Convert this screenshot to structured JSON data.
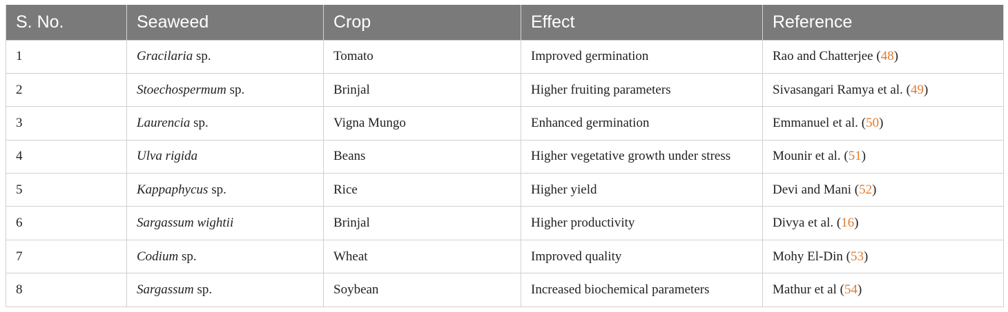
{
  "table": {
    "headers": [
      "S. No.",
      "Seaweed",
      "Crop",
      "Effect",
      "Reference"
    ],
    "rows": [
      {
        "sno": "1",
        "seaweed_italic": "Gracilaria",
        "seaweed_suffix": " sp.",
        "crop": "Tomato",
        "effect": "Improved germination",
        "ref_text": "Rao and Chatterjee (",
        "ref_num": "48",
        "ref_close": ")"
      },
      {
        "sno": "2",
        "seaweed_italic": "Stoechospermum",
        "seaweed_suffix": " sp.",
        "crop": "Brinjal",
        "effect": "Higher fruiting parameters",
        "ref_text": "Sivasangari Ramya et al. (",
        "ref_num": "49",
        "ref_close": ")"
      },
      {
        "sno": "3",
        "seaweed_italic": "Laurencia",
        "seaweed_suffix": " sp.",
        "crop": "Vigna Mungo",
        "effect": "Enhanced germination",
        "ref_text": "Emmanuel et al. (",
        "ref_num": "50",
        "ref_close": ")"
      },
      {
        "sno": "4",
        "seaweed_italic": "Ulva rigida",
        "seaweed_suffix": "",
        "crop": "Beans",
        "effect": "Higher vegetative growth under stress",
        "ref_text": "Mounir et al. (",
        "ref_num": "51",
        "ref_close": ")"
      },
      {
        "sno": "5",
        "seaweed_italic": "Kappaphycus",
        "seaweed_suffix": " sp.",
        "crop": "Rice",
        "effect": "Higher yield",
        "ref_text": "Devi and Mani (",
        "ref_num": "52",
        "ref_close": ")"
      },
      {
        "sno": "6",
        "seaweed_italic": "Sargassum wightii",
        "seaweed_suffix": "",
        "crop": "Brinjal",
        "effect": "Higher productivity",
        "ref_text": "Divya et al. (",
        "ref_num": "16",
        "ref_close": ")"
      },
      {
        "sno": "7",
        "seaweed_italic": "Codium",
        "seaweed_suffix": " sp.",
        "crop": "Wheat",
        "effect": "Improved quality",
        "ref_text": "Mohy El-Din (",
        "ref_num": "53",
        "ref_close": ")"
      },
      {
        "sno": "8",
        "seaweed_italic": "Sargassum",
        "seaweed_suffix": " sp.",
        "crop": "Soybean",
        "effect": "Increased biochemical parameters",
        "ref_text": "Mathur et al (",
        "ref_num": "54",
        "ref_close": ")"
      }
    ]
  },
  "colors": {
    "header_bg": "#7a7a7a",
    "header_text": "#ffffff",
    "reference_link": "#e07a2e",
    "border": "#d0d0d0"
  }
}
